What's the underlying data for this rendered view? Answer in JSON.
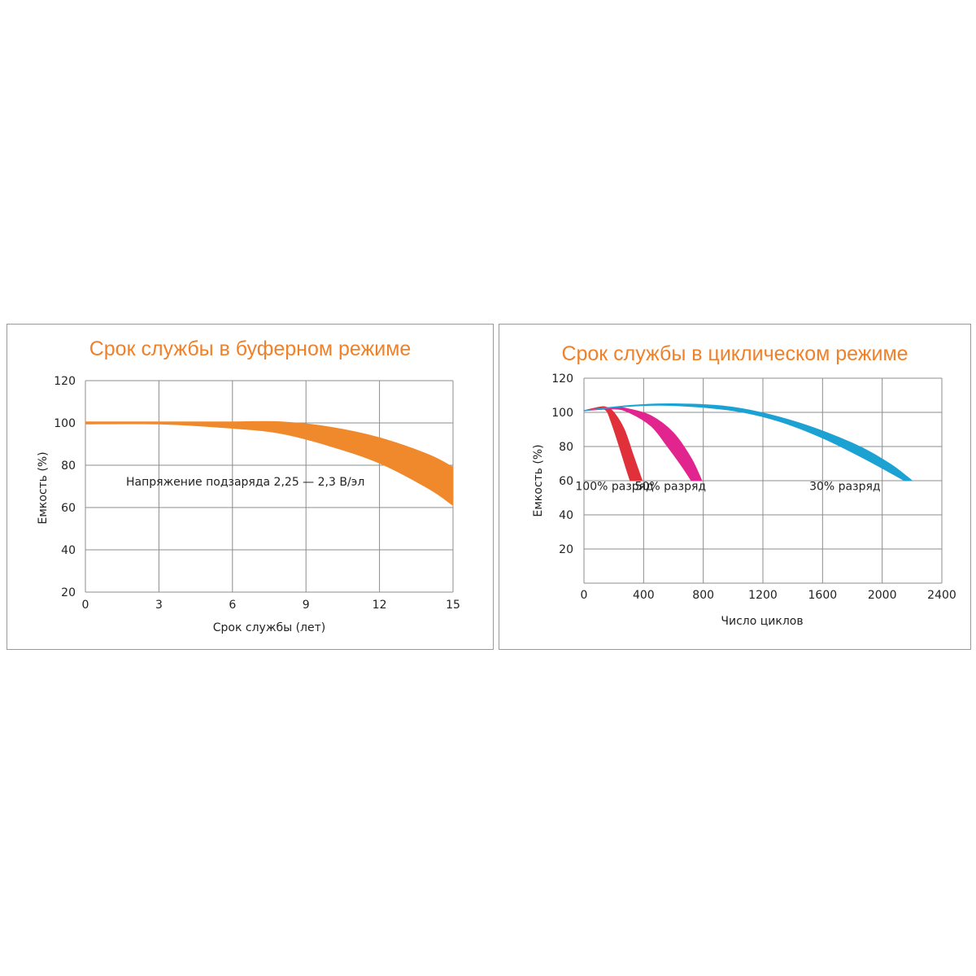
{
  "chart_data": [
    {
      "type": "area",
      "title": "Срок службы в буферном режиме",
      "xlabel": "Срок службы (лет)",
      "ylabel": "Емкость (%)",
      "xlim": [
        0,
        15
      ],
      "ylim": [
        20,
        120
      ],
      "x_ticks": [
        "0",
        "3",
        "6",
        "9",
        "12",
        "15"
      ],
      "y_ticks": [
        "20",
        "40",
        "60",
        "80",
        "100",
        "120"
      ],
      "grid": true,
      "annotation": "Напряжение подзаряда 2,25 — 2,3 В/эл",
      "color": "#f0892c",
      "series": [
        {
          "upper": [
            [
              0,
              100.5
            ],
            [
              3,
              100.5
            ],
            [
              6,
              100.5
            ],
            [
              8,
              100.5
            ],
            [
              10,
              98
            ],
            [
              12,
              93
            ],
            [
              14,
              85
            ],
            [
              15,
              79
            ]
          ],
          "lower": [
            [
              0,
              99.5
            ],
            [
              3,
              99.5
            ],
            [
              6,
              97.5
            ],
            [
              8,
              95
            ],
            [
              10,
              89
            ],
            [
              12,
              81
            ],
            [
              14,
              69
            ],
            [
              15,
              61
            ]
          ]
        }
      ]
    },
    {
      "type": "area",
      "title": "Срок службы в циклическом режиме",
      "xlabel": "Число циклов",
      "ylabel": "Емкость (%)",
      "xlim": [
        0,
        2400
      ],
      "ylim": [
        0,
        120
      ],
      "x_ticks": [
        "0",
        "400",
        "800",
        "1200",
        "1600",
        "2000",
        "2400"
      ],
      "y_ticks": [
        "20",
        "40",
        "60",
        "80",
        "100",
        "120"
      ],
      "grid": true,
      "series": [
        {
          "name": "100% разряд",
          "color": "#e0303a",
          "label_at": [
            205,
            57
          ],
          "upper": [
            [
              0,
              101
            ],
            [
              100,
              103
            ],
            [
              150,
              103
            ],
            [
              200,
              100
            ],
            [
              270,
              90
            ],
            [
              330,
              75
            ],
            [
              390,
              60
            ]
          ],
          "lower": [
            [
              0,
              101
            ],
            [
              100,
              102.5
            ],
            [
              150,
              101
            ],
            [
              180,
              95
            ],
            [
              230,
              82
            ],
            [
              280,
              68
            ],
            [
              310,
              60
            ]
          ]
        },
        {
          "name": "50% разряд",
          "color": "#e2248f",
          "label_at": [
            580,
            57
          ],
          "upper": [
            [
              0,
              101
            ],
            [
              200,
              103
            ],
            [
              300,
              102
            ],
            [
              450,
              98
            ],
            [
              600,
              88
            ],
            [
              720,
              73
            ],
            [
              790,
              60
            ]
          ],
          "lower": [
            [
              0,
              101
            ],
            [
              200,
              102
            ],
            [
              300,
              100
            ],
            [
              450,
              92
            ],
            [
              560,
              80
            ],
            [
              660,
              68
            ],
            [
              720,
              60
            ]
          ]
        },
        {
          "name": "30% разряд",
          "color": "#1ba2d3",
          "label_at": [
            1750,
            57
          ],
          "upper": [
            [
              0,
              101
            ],
            [
              300,
              104
            ],
            [
              600,
              105
            ],
            [
              1000,
              103
            ],
            [
              1400,
              95
            ],
            [
              1800,
              82
            ],
            [
              2050,
              70
            ],
            [
              2200,
              60
            ]
          ],
          "lower": [
            [
              0,
              101
            ],
            [
              300,
              103.5
            ],
            [
              600,
              104
            ],
            [
              1000,
              101
            ],
            [
              1300,
              95
            ],
            [
              1600,
              85
            ],
            [
              1900,
              72
            ],
            [
              2150,
              60
            ]
          ]
        }
      ]
    }
  ]
}
